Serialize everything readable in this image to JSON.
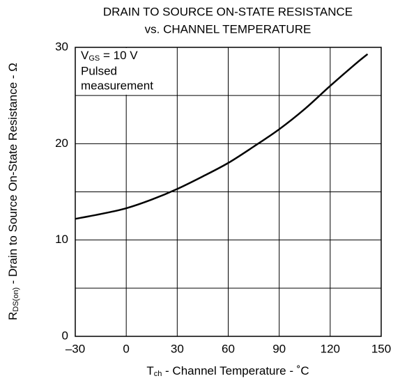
{
  "chart_data": {
    "type": "line",
    "title": [
      "DRAIN TO SOURCE ON-STATE RESISTANCE",
      "vs. CHANNEL TEMPERATURE"
    ],
    "x_label": {
      "main": "T",
      "sub": "ch",
      "rest": " - Channel Temperature - ˚C"
    },
    "y_label": {
      "main": "R",
      "sub": "DS(on)",
      "rest": " - Drain to Source On-State Resistance - Ω"
    },
    "annotation": {
      "line1": {
        "main": "V",
        "sub": "GS",
        "rest": " = 10 V"
      },
      "line2": "Pulsed",
      "line3": "measurement"
    },
    "x": [
      -30,
      -15,
      0,
      15,
      30,
      45,
      60,
      75,
      90,
      105,
      120,
      135,
      142
    ],
    "series": [
      {
        "name": "RDS(on)",
        "color": "#000000",
        "values": [
          12.2,
          12.7,
          13.3,
          14.2,
          15.3,
          16.6,
          18.0,
          19.7,
          21.5,
          23.6,
          26.0,
          28.3,
          29.3
        ]
      }
    ],
    "xlim": [
      -30,
      150
    ],
    "xticks": [
      {
        "value": -30,
        "label": "–30"
      },
      0,
      30,
      60,
      90,
      120,
      150
    ],
    "ylim": [
      0,
      30
    ],
    "yticks": [
      0,
      10,
      20,
      30
    ],
    "yminor": [
      5,
      15,
      25
    ],
    "grid": true
  }
}
